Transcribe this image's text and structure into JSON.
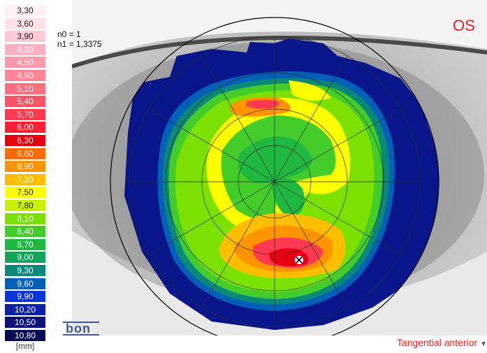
{
  "legend": {
    "unit": "[mm]",
    "items": [
      {
        "label": "3,30",
        "color": "#fff1f5",
        "text": "#222"
      },
      {
        "label": "3,60",
        "color": "#ffe1ea",
        "text": "#222"
      },
      {
        "label": "3,90",
        "color": "#ffc9d6",
        "text": "#222"
      },
      {
        "label": "4,20",
        "color": "#ffb0c0",
        "text": "#ffffff"
      },
      {
        "label": "4,50",
        "color": "#ff9aab",
        "text": "#ffffff"
      },
      {
        "label": "4,80",
        "color": "#ff8495",
        "text": "#ffffff"
      },
      {
        "label": "5,10",
        "color": "#ff6d80",
        "text": "#ffffff"
      },
      {
        "label": "5,40",
        "color": "#ff5468",
        "text": "#ffffff"
      },
      {
        "label": "5,70",
        "color": "#ff3a50",
        "text": "#ffffff"
      },
      {
        "label": "6,00",
        "color": "#ff1f35",
        "text": "#ffffff"
      },
      {
        "label": "6,30",
        "color": "#e60012",
        "text": "#ffffff"
      },
      {
        "label": "6,60",
        "color": "#ff6a00",
        "text": "#ffffff"
      },
      {
        "label": "6,90",
        "color": "#ff9400",
        "text": "#ffffff"
      },
      {
        "label": "7,20",
        "color": "#ffbf00",
        "text": "#ffffff"
      },
      {
        "label": "7,50",
        "color": "#ffff00",
        "text": "#222"
      },
      {
        "label": "7,80",
        "color": "#c8f000",
        "text": "#222"
      },
      {
        "label": "8,10",
        "color": "#7ce000",
        "text": "#ffffff"
      },
      {
        "label": "8,40",
        "color": "#44cc2a",
        "text": "#ffffff"
      },
      {
        "label": "8,70",
        "color": "#1fb840",
        "text": "#ffffff"
      },
      {
        "label": "9,00",
        "color": "#12a35a",
        "text": "#ffffff"
      },
      {
        "label": "9,30",
        "color": "#0a8878",
        "text": "#ffffff"
      },
      {
        "label": "9,60",
        "color": "#0060b8",
        "text": "#ffffff"
      },
      {
        "label": "9,90",
        "color": "#0a35d6",
        "text": "#ffffff"
      },
      {
        "label": "10,20",
        "color": "#0a1fa8",
        "text": "#ffffff"
      },
      {
        "label": "10,50",
        "color": "#08127a",
        "text": "#ffffff"
      },
      {
        "label": "10,80",
        "color": "#050a52",
        "text": "#ffffff"
      }
    ]
  },
  "indices": {
    "n0": "n0 = 1",
    "n1": "n1 = 1,3375"
  },
  "eye_label": "OS",
  "logo_text": "bon",
  "map_mode": "Tangential anterior",
  "colors": {
    "eye_label": "#e32020",
    "mode": "#e32020",
    "logo": "#3b5b98"
  }
}
